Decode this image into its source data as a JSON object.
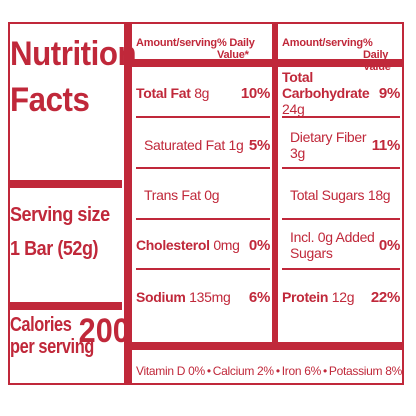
{
  "title": [
    "Nutrition",
    "Facts"
  ],
  "serving": [
    "Serving size",
    "1 Bar (52g)"
  ],
  "calories": {
    "label": [
      "Calories",
      "per serving"
    ],
    "value": "200"
  },
  "colhead": {
    "amount": "Amount/serving",
    "dv": "% Daily Value*"
  },
  "left_rows": [
    {
      "name": "Total Fat",
      "amount": "8g",
      "dv": "10%",
      "bold": true
    },
    {
      "name": "Saturated Fat",
      "amount": "1g",
      "dv": "5%"
    },
    {
      "name": "Trans Fat",
      "amount": "0g",
      "dv": ""
    },
    {
      "name": "Cholesterol",
      "amount": "0mg",
      "dv": "0%",
      "bold": true
    },
    {
      "name": "Sodium",
      "amount": "135mg",
      "dv": "6%",
      "bold": true
    }
  ],
  "right_rows": [
    {
      "name": "Total Carbohydrate",
      "amount": "24g",
      "dv": "9%",
      "bold": true
    },
    {
      "name": "Dietary Fiber",
      "amount": "3g",
      "dv": "11%"
    },
    {
      "name": "Total Sugars",
      "amount": "18g",
      "dv": ""
    },
    {
      "name": "Incl. 0g Added Sugars",
      "amount": "",
      "dv": "0%"
    },
    {
      "name": "Protein",
      "amount": "12g",
      "dv": "22%",
      "bold": true
    }
  ],
  "vitamins": [
    "Vitamin D 0%",
    "Calcium 2%",
    "Iron 6%",
    "Potassium 8%"
  ],
  "colors": {
    "ink": "#c0283a",
    "background": "#ffffff"
  }
}
